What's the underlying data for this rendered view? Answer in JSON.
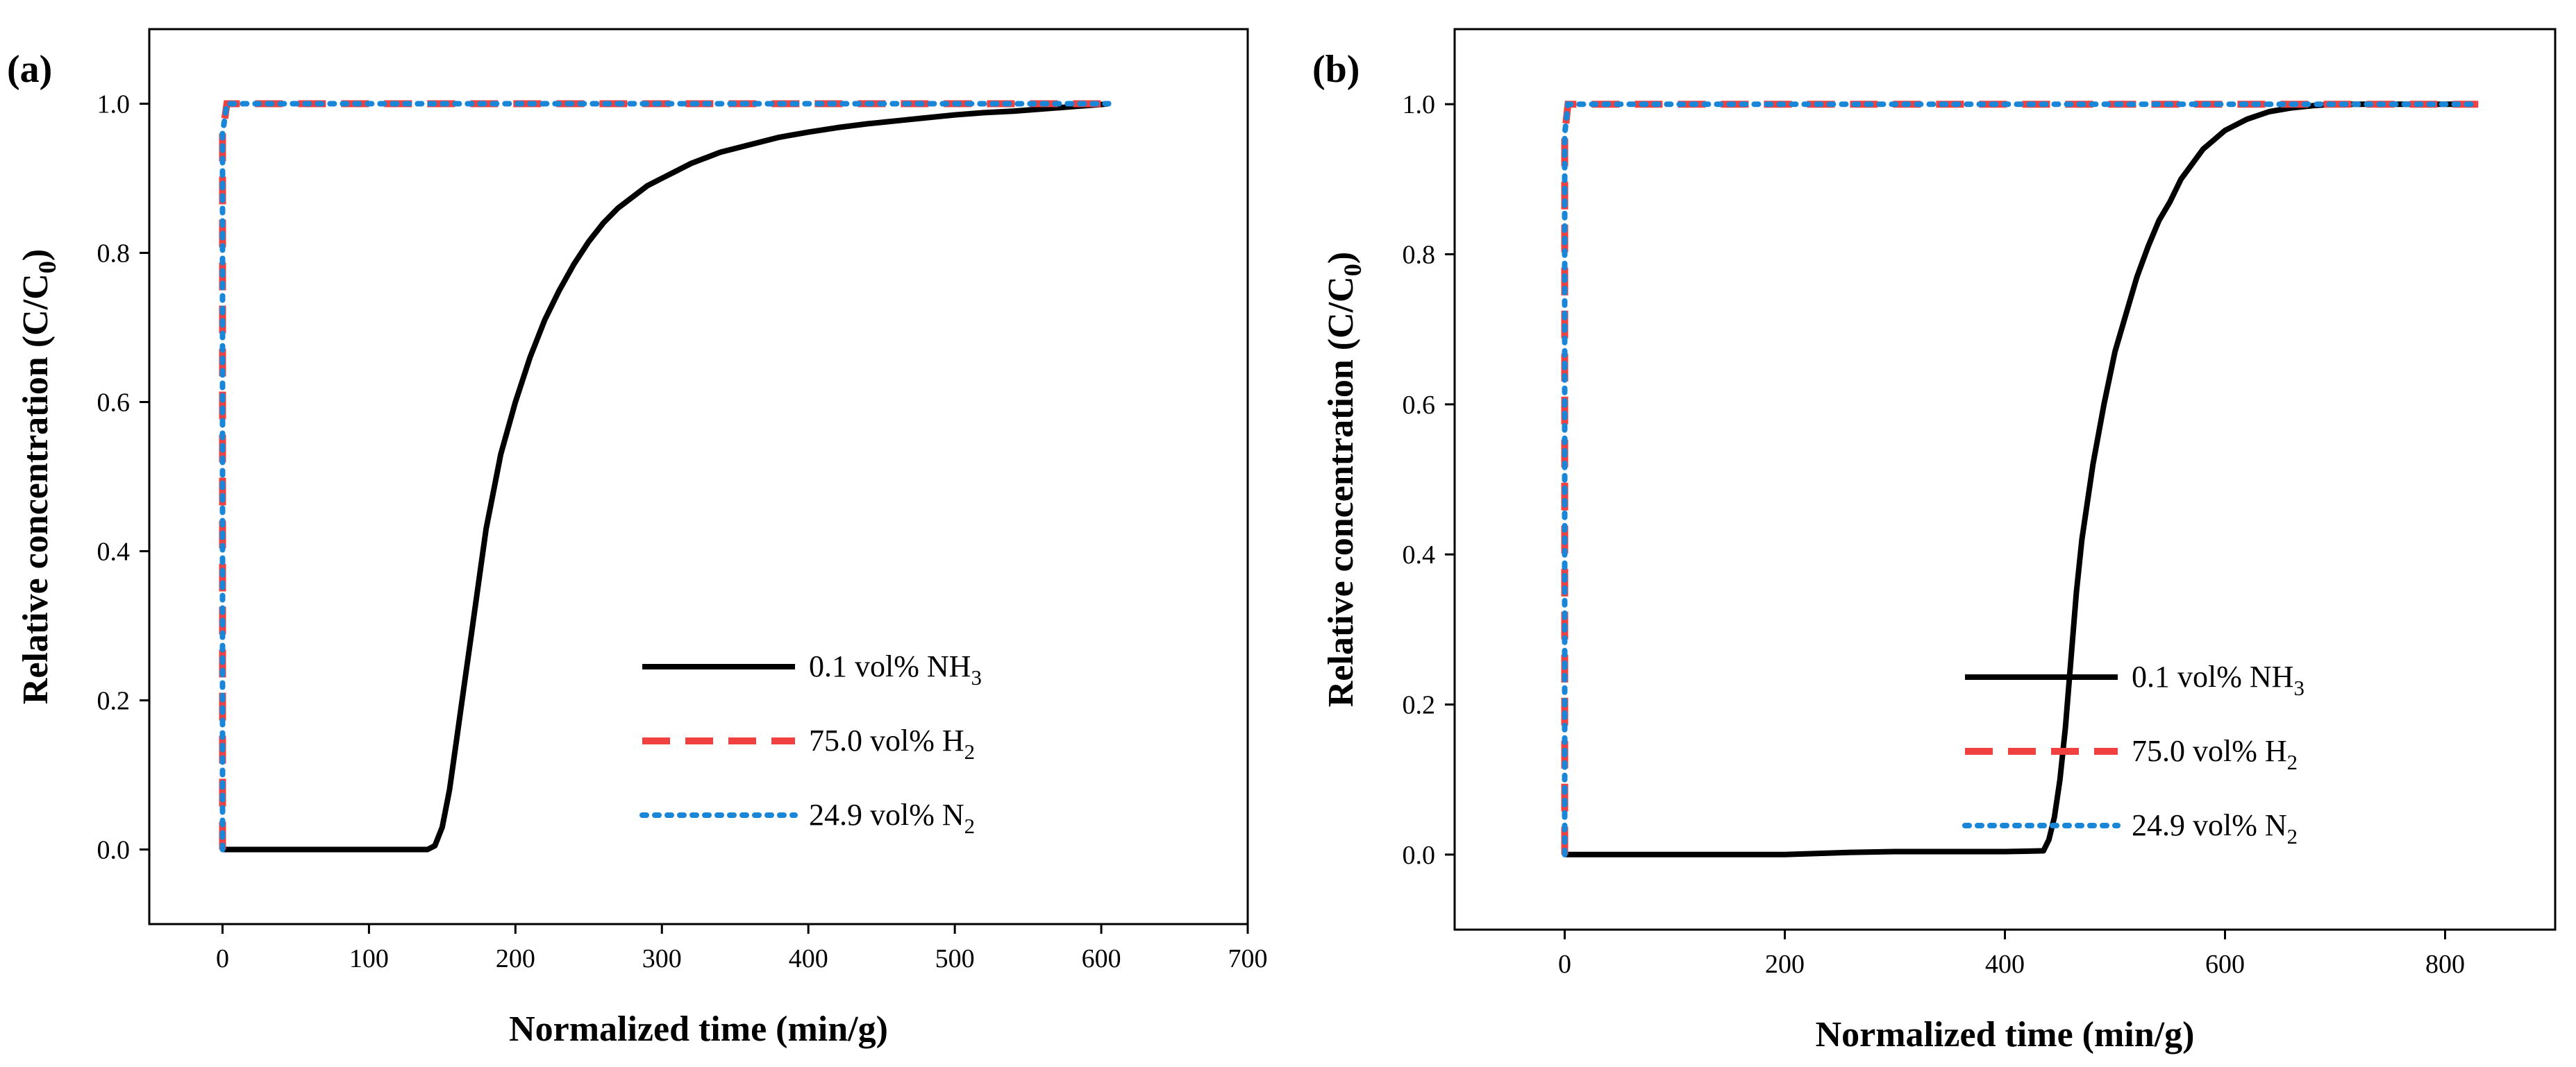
{
  "colors": {
    "nh3": "#000000",
    "h2": "#f04040",
    "n2": "#1a86d8"
  },
  "chart_data": [
    {
      "id": "a",
      "type": "line",
      "panel_label": "(a)",
      "xlabel": "Normalized time (min/g)",
      "ylabel_main": "Relative concentration (C/C",
      "ylabel_sub": "0",
      "ylabel_end": ")",
      "xlim": [
        -50,
        700
      ],
      "ylim": [
        -0.1,
        1.1
      ],
      "xticks": [
        0,
        100,
        200,
        300,
        400,
        500,
        600,
        700
      ],
      "xtick_labels": [
        "0",
        "100",
        "200",
        "300",
        "400",
        "500",
        "600",
        "700"
      ],
      "yticks": [
        0.0,
        0.2,
        0.4,
        0.6,
        0.8,
        1.0
      ],
      "ytick_labels": [
        "0.0",
        "0.2",
        "0.4",
        "0.6",
        "0.8",
        "1.0"
      ],
      "legend_position": "bottom-right",
      "series": [
        {
          "key": "nh3",
          "name_main": "0.1 vol% NH",
          "name_sub": "3",
          "style": "solid",
          "x": [
            0,
            140,
            145,
            150,
            155,
            160,
            165,
            170,
            175,
            180,
            185,
            190,
            200,
            210,
            220,
            230,
            240,
            250,
            260,
            270,
            280,
            290,
            300,
            320,
            340,
            360,
            380,
            400,
            420,
            440,
            460,
            480,
            500,
            520,
            540,
            560,
            580,
            600,
            605
          ],
          "y": [
            0,
            0,
            0.005,
            0.03,
            0.08,
            0.15,
            0.22,
            0.29,
            0.36,
            0.43,
            0.48,
            0.53,
            0.6,
            0.66,
            0.71,
            0.75,
            0.785,
            0.815,
            0.84,
            0.86,
            0.875,
            0.89,
            0.9,
            0.92,
            0.935,
            0.945,
            0.955,
            0.962,
            0.968,
            0.973,
            0.977,
            0.981,
            0.985,
            0.988,
            0.99,
            0.993,
            0.996,
            0.999,
            1.0
          ]
        },
        {
          "key": "h2",
          "name_main": "75.0 vol% H",
          "name_sub": "2",
          "style": "dashed",
          "x": [
            0,
            0,
            3,
            605
          ],
          "y": [
            0,
            0.96,
            1.0,
            1.0
          ]
        },
        {
          "key": "n2",
          "name_main": "24.9 vol% N",
          "name_sub": "2",
          "style": "dotted",
          "x": [
            0,
            0,
            3,
            605
          ],
          "y": [
            0,
            0.96,
            1.0,
            1.0
          ]
        }
      ]
    },
    {
      "id": "b",
      "type": "line",
      "panel_label": "(b)",
      "xlabel": "Normalized time (min/g)",
      "ylabel_main": "Relative concentration (C/C",
      "ylabel_sub": "0",
      "ylabel_end": ")",
      "xlim": [
        -100,
        900
      ],
      "ylim": [
        -0.1,
        1.1
      ],
      "xticks": [
        0,
        200,
        400,
        600,
        800
      ],
      "xtick_labels": [
        "0",
        "200",
        "400",
        "600",
        "800"
      ],
      "yticks": [
        0.0,
        0.2,
        0.4,
        0.6,
        0.8,
        1.0
      ],
      "ytick_labels": [
        "0.0",
        "0.2",
        "0.4",
        "0.6",
        "0.8",
        "1.0"
      ],
      "legend_position": "bottom-right",
      "series": [
        {
          "key": "nh3",
          "name_main": "0.1 vol% NH",
          "name_sub": "3",
          "style": "solid",
          "x": [
            0,
            200,
            260,
            300,
            400,
            435,
            440,
            445,
            450,
            455,
            460,
            465,
            470,
            480,
            490,
            500,
            510,
            520,
            530,
            540,
            550,
            560,
            580,
            600,
            620,
            640,
            660,
            680,
            700,
            750,
            800,
            830
          ],
          "y": [
            0,
            0,
            0.003,
            0.004,
            0.004,
            0.005,
            0.02,
            0.05,
            0.1,
            0.17,
            0.26,
            0.35,
            0.42,
            0.52,
            0.6,
            0.67,
            0.72,
            0.77,
            0.81,
            0.845,
            0.87,
            0.9,
            0.94,
            0.965,
            0.98,
            0.99,
            0.995,
            0.998,
            1.0,
            1.0,
            1.0,
            1.0
          ]
        },
        {
          "key": "h2",
          "name_main": "75.0 vol% H",
          "name_sub": "2",
          "style": "dashed",
          "x": [
            0,
            0,
            3,
            830
          ],
          "y": [
            0,
            0.96,
            1.0,
            1.0
          ]
        },
        {
          "key": "n2",
          "name_main": "24.9 vol% N",
          "name_sub": "2",
          "style": "dotted",
          "x": [
            0,
            0,
            3,
            830
          ],
          "y": [
            0,
            0.96,
            1.0,
            1.0
          ]
        }
      ]
    }
  ]
}
